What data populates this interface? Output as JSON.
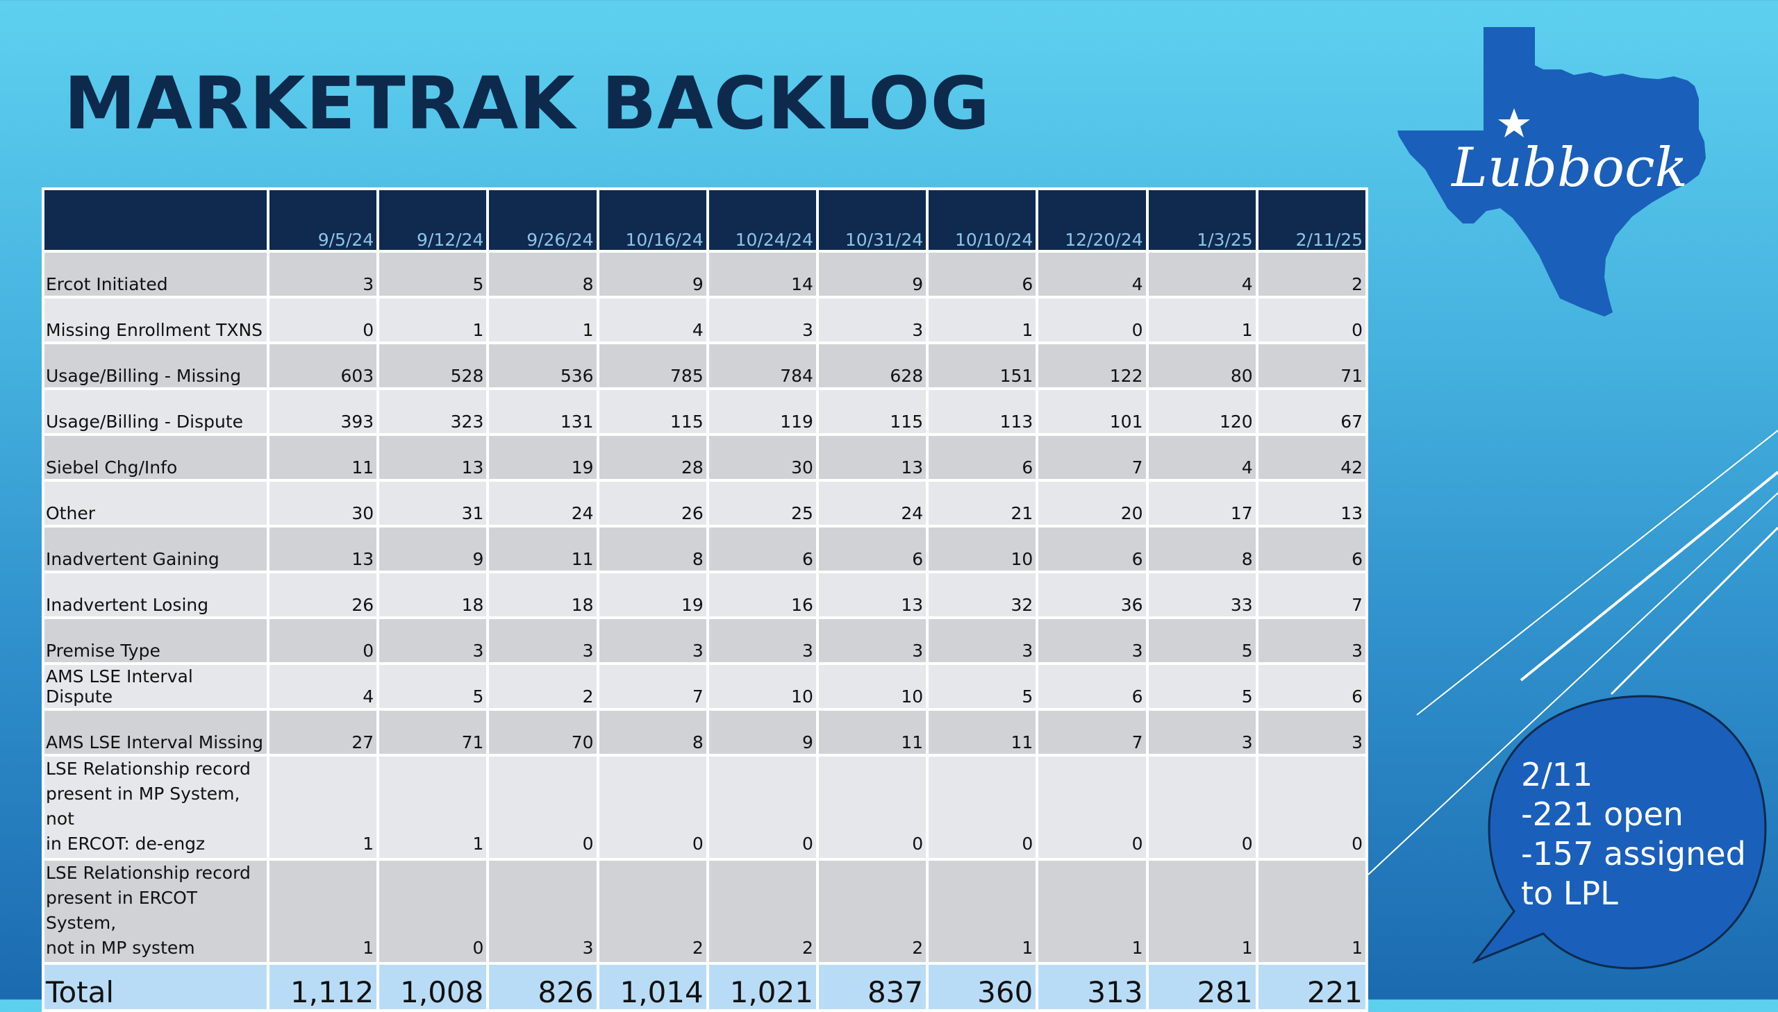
{
  "slide": {
    "title": "MARKETRAK BACKLOG"
  },
  "logo": {
    "text": "Lubbock",
    "icon": "texas-map-with-star",
    "color": "#1a5fba"
  },
  "table": {
    "columns": [
      "9/5/24",
      "9/12/24",
      "9/26/24",
      "10/16/24",
      "10/24/24",
      "10/31/24",
      "10/10/24",
      "12/20/24",
      "1/3/25",
      "2/11/25"
    ],
    "rows": [
      {
        "label": "Ercot Initiated",
        "values": [
          "3",
          "5",
          "8",
          "9",
          "14",
          "9",
          "6",
          "4",
          "4",
          "2"
        ]
      },
      {
        "label": "Missing Enrollment TXNS",
        "values": [
          "0",
          "1",
          "1",
          "4",
          "3",
          "3",
          "1",
          "0",
          "1",
          "0"
        ]
      },
      {
        "label": "Usage/Billing - Missing",
        "values": [
          "603",
          "528",
          "536",
          "785",
          "784",
          "628",
          "151",
          "122",
          "80",
          "71"
        ]
      },
      {
        "label": "Usage/Billing - Dispute",
        "values": [
          "393",
          "323",
          "131",
          "115",
          "119",
          "115",
          "113",
          "101",
          "120",
          "67"
        ]
      },
      {
        "label": "Siebel Chg/Info",
        "values": [
          "11",
          "13",
          "19",
          "28",
          "30",
          "13",
          "6",
          "7",
          "4",
          "42"
        ]
      },
      {
        "label": "Other",
        "values": [
          "30",
          "31",
          "24",
          "26",
          "25",
          "24",
          "21",
          "20",
          "17",
          "13"
        ]
      },
      {
        "label": "Inadvertent Gaining",
        "values": [
          "13",
          "9",
          "11",
          "8",
          "6",
          "6",
          "10",
          "6",
          "8",
          "6"
        ]
      },
      {
        "label": "Inadvertent Losing",
        "values": [
          "26",
          "18",
          "18",
          "19",
          "16",
          "13",
          "32",
          "36",
          "33",
          "7"
        ]
      },
      {
        "label": "Premise Type",
        "values": [
          "0",
          "3",
          "3",
          "3",
          "3",
          "3",
          "3",
          "3",
          "5",
          "3"
        ]
      },
      {
        "label": "AMS LSE Interval Dispute",
        "values": [
          "4",
          "5",
          "2",
          "7",
          "10",
          "10",
          "5",
          "6",
          "5",
          "6"
        ]
      },
      {
        "label": "AMS LSE Interval Missing",
        "values": [
          "27",
          "71",
          "70",
          "8",
          "9",
          "11",
          "11",
          "7",
          "3",
          "3"
        ]
      },
      {
        "label_lines": [
          "LSE Relationship record",
          "present in MP System, not",
          "in ERCOT: de-engz"
        ],
        "values": [
          "1",
          "1",
          "0",
          "0",
          "0",
          "0",
          "0",
          "0",
          "0",
          "0"
        ]
      },
      {
        "label_lines": [
          "LSE Relationship record",
          "present in ERCOT System,",
          "not in MP system"
        ],
        "values": [
          "1",
          "0",
          "3",
          "2",
          "2",
          "2",
          "1",
          "1",
          "1",
          "1"
        ]
      }
    ],
    "total": {
      "label": "Total",
      "values": [
        "1,112",
        "1,008",
        "826",
        "1,014",
        "1,021",
        "837",
        "360",
        "313",
        "281",
        "221"
      ]
    }
  },
  "callout": {
    "lines": [
      "2/11",
      "-221 open",
      "-157 assigned",
      "to LPL"
    ],
    "color": "#1a5fba"
  }
}
